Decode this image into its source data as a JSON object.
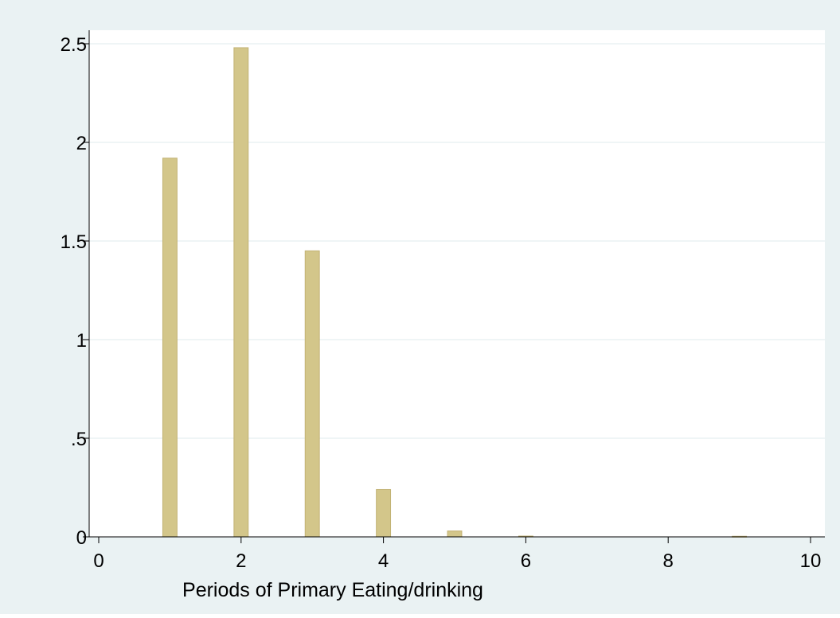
{
  "chart_data": {
    "type": "bar",
    "title": "",
    "xlabel": "Periods of Primary Eating/drinking",
    "ylabel": "",
    "xlim": [
      0,
      10
    ],
    "ylim": [
      0,
      2.5
    ],
    "x_ticks": [
      {
        "value": 0,
        "label": "0"
      },
      {
        "value": 2,
        "label": "2"
      },
      {
        "value": 4,
        "label": "4"
      },
      {
        "value": 6,
        "label": "6"
      },
      {
        "value": 8,
        "label": "8"
      },
      {
        "value": 10,
        "label": "10"
      }
    ],
    "y_ticks": [
      {
        "value": 0,
        "label": "0"
      },
      {
        "value": 0.5,
        "label": ".5"
      },
      {
        "value": 1,
        "label": "1"
      },
      {
        "value": 1.5,
        "label": "1.5"
      },
      {
        "value": 2,
        "label": "2"
      },
      {
        "value": 2.5,
        "label": "2.5"
      }
    ],
    "grid": "horizontal",
    "bar_width": 0.2,
    "bars": [
      {
        "x": 1,
        "y": 1.92
      },
      {
        "x": 2,
        "y": 2.48
      },
      {
        "x": 3,
        "y": 1.45
      },
      {
        "x": 4,
        "y": 0.24
      },
      {
        "x": 5,
        "y": 0.03
      },
      {
        "x": 6,
        "y": 0.004
      },
      {
        "x": 9,
        "y": 0.003
      }
    ],
    "colors": {
      "bar_fill": "#d3c68a",
      "bar_edge": "#c2b274",
      "plot_background": "#ffffff",
      "outer_background": "#eaf2f3",
      "grid": "#eaf2f3",
      "axis": "#000000"
    }
  }
}
